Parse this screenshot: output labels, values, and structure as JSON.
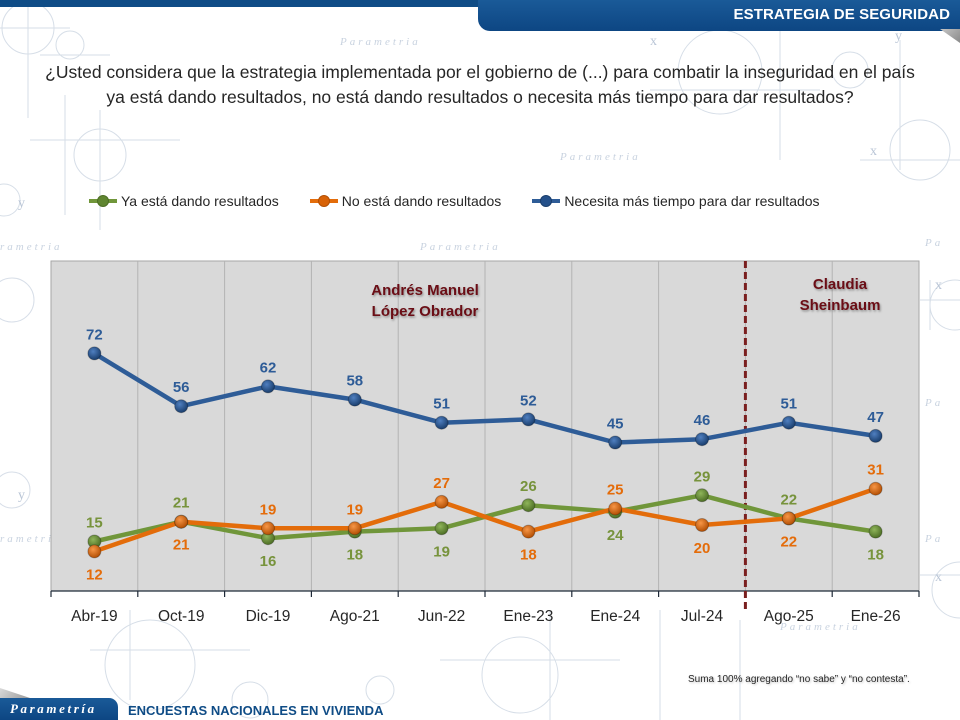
{
  "header": {
    "section_title": "ESTRATEGIA DE SEGURIDAD"
  },
  "question": "¿Usted considera que la estrategia implementada por el gobierno de (...) para combatir la inseguridad en el país ya está dando resultados, no está dando resultados o necesita más tiempo para dar resultados?",
  "footer": {
    "logo_text": "Parametría",
    "title": "ENCUESTAS NACIONALES EN VIVIENDA",
    "note": "Suma 100% agregando “no sabe” y “no contesta”."
  },
  "colors": {
    "brand_blue": "#0f4c86",
    "plot_background": "#d9d9d9",
    "divider": "#7a1f1f",
    "annotation": "#6b0f14"
  },
  "chart_data": {
    "type": "line",
    "title": "",
    "xlabel": "",
    "ylabel": "",
    "ylim": [
      0,
      100
    ],
    "y_axis_visible": false,
    "grid": "vertical",
    "legend_position": "top",
    "categories": [
      "Abr-19",
      "Oct-19",
      "Dic-19",
      "Ago-21",
      "Jun-22",
      "Ene-23",
      "Ene-24",
      "Jul-24",
      "Ago-25",
      "Ene-26"
    ],
    "series": [
      {
        "name": "Ya está dando resultados",
        "color": "#70963a",
        "label_color": "#77933c",
        "values": [
          15,
          21,
          16,
          18,
          19,
          26,
          24,
          29,
          22,
          18
        ],
        "label_positions": [
          "above",
          "above",
          "below",
          "below",
          "below",
          "above",
          "below",
          "above",
          "above",
          "below"
        ]
      },
      {
        "name": "No está dando resultados",
        "color": "#e36c0a",
        "label_color": "#e46c0a",
        "values": [
          12,
          21,
          19,
          19,
          27,
          18,
          25,
          20,
          22,
          31
        ],
        "label_positions": [
          "below",
          "below",
          "above",
          "above",
          "above",
          "below",
          "above",
          "below",
          "below",
          "above"
        ]
      },
      {
        "name": "Necesita más tiempo para dar resultados",
        "color": "#2e5c97",
        "label_color": "#2e5c97",
        "values": [
          72,
          56,
          62,
          58,
          51,
          52,
          45,
          46,
          51,
          47
        ],
        "label_positions": [
          "above",
          "above",
          "above",
          "above",
          "above",
          "above",
          "above",
          "above",
          "above",
          "above"
        ]
      }
    ],
    "divider_after_category": "Jul-24",
    "annotations": [
      {
        "text_lines": [
          "Andrés Manuel",
          "López Obrador"
        ],
        "period": "Abr-19 to Jul-24",
        "position": "top-center-left"
      },
      {
        "text_lines": [
          "Claudia",
          "Sheinbaum"
        ],
        "period": "Ago-25 to Ene-26",
        "position": "top-right"
      }
    ]
  }
}
